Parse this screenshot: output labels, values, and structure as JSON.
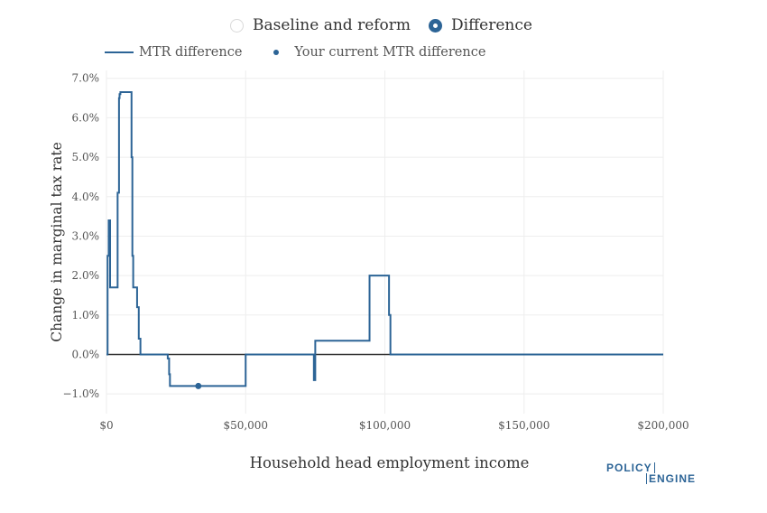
{
  "toggle": {
    "options": [
      {
        "label": "Baseline and reform",
        "selected": false
      },
      {
        "label": "Difference",
        "selected": true
      }
    ]
  },
  "legend": {
    "line_label": "MTR difference",
    "dot_label": "Your current MTR difference"
  },
  "logo": {
    "line1": "POLICY",
    "line2": "ENGINE"
  },
  "colors": {
    "series": "#2c6496",
    "zero_line": "#333333",
    "grid": "#eeeeee"
  },
  "chart_data": {
    "type": "line",
    "line_shape": "step",
    "xlabel": "Household head employment income",
    "ylabel": "Change in marginal tax rate",
    "xlim": [
      0,
      200000
    ],
    "ylim": [
      -0.015,
      0.072
    ],
    "x_ticks": [
      0,
      50000,
      100000,
      150000,
      200000
    ],
    "x_tick_labels": [
      "$0",
      "$50,000",
      "$100,000",
      "$150,000",
      "$200,000"
    ],
    "y_ticks": [
      -0.01,
      0,
      0.01,
      0.02,
      0.03,
      0.04,
      0.05,
      0.06,
      0.07
    ],
    "y_tick_labels": [
      "−1.0%",
      "0.0%",
      "1.0%",
      "2.0%",
      "3.0%",
      "4.0%",
      "5.0%",
      "6.0%",
      "7.0%"
    ],
    "grid": true,
    "zero_line": true,
    "series": [
      {
        "name": "MTR difference",
        "x": [
          0,
          400,
          800,
          1300,
          4000,
          4500,
          4700,
          5000,
          9000,
          9300,
          9600,
          10000,
          11000,
          11600,
          12200,
          12700,
          13000,
          22000,
          22500,
          22800,
          23400,
          49000,
          50000,
          74500,
          75000,
          75300,
          94500,
          101500,
          102000,
          102500,
          200000
        ],
        "y": [
          0,
          0.025,
          0.034,
          0.017,
          0.041,
          0.065,
          0.066,
          0.0665,
          0.05,
          0.025,
          0.017,
          0.017,
          0.012,
          0.004,
          0,
          0,
          0,
          -0.001,
          -0.005,
          -0.008,
          -0.008,
          -0.008,
          0,
          -0.0065,
          0.0035,
          0.0035,
          0.02,
          0.01,
          0,
          0,
          0
        ]
      },
      {
        "name": "Your current MTR difference",
        "x": [
          33000
        ],
        "y": [
          -0.008
        ]
      }
    ]
  }
}
